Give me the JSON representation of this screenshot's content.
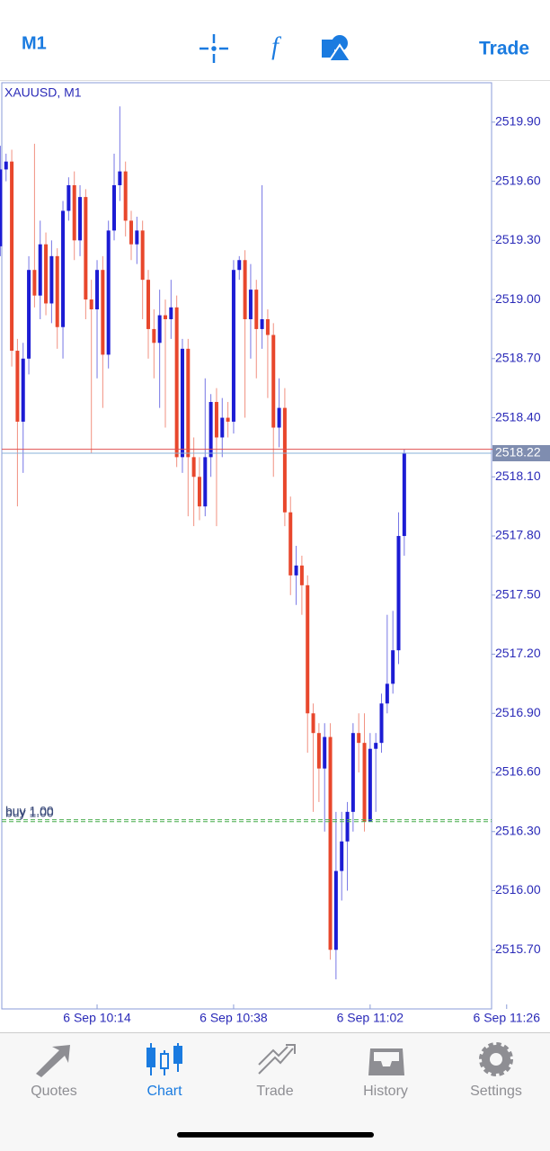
{
  "top_bar": {
    "timeframe": "M1",
    "trade": "Trade"
  },
  "chart_data": {
    "type": "candlestick",
    "title": "XAUUSD, M1",
    "up_color": "#1c1cd4",
    "down_color": "#e8472c",
    "candles": [
      [
        2519.27,
        2519.78,
        2519.22,
        2519.66
      ],
      [
        2519.66,
        2519.74,
        2519.6,
        2519.7
      ],
      [
        2519.7,
        2519.76,
        2518.66,
        2518.74
      ],
      [
        2518.74,
        2518.8,
        2517.95,
        2518.38
      ],
      [
        2518.38,
        2518.78,
        2518.12,
        2518.7
      ],
      [
        2518.7,
        2519.22,
        2518.62,
        2519.15
      ],
      [
        2519.15,
        2519.79,
        2518.96,
        2519.02
      ],
      [
        2519.02,
        2519.4,
        2518.9,
        2519.28
      ],
      [
        2519.28,
        2519.34,
        2518.92,
        2518.98
      ],
      [
        2518.98,
        2519.3,
        2518.88,
        2519.22
      ],
      [
        2519.22,
        2519.26,
        2518.75,
        2518.86
      ],
      [
        2518.86,
        2519.5,
        2518.7,
        2519.45
      ],
      [
        2519.45,
        2519.62,
        2519.4,
        2519.58
      ],
      [
        2519.58,
        2519.65,
        2519.2,
        2519.3
      ],
      [
        2519.3,
        2519.58,
        2519.22,
        2519.52
      ],
      [
        2519.52,
        2519.56,
        2518.9,
        2519.0
      ],
      [
        2519.0,
        2519.1,
        2518.22,
        2518.95
      ],
      [
        2518.95,
        2519.2,
        2518.6,
        2519.15
      ],
      [
        2519.15,
        2519.22,
        2518.45,
        2518.72
      ],
      [
        2518.72,
        2519.4,
        2518.65,
        2519.35
      ],
      [
        2519.35,
        2519.74,
        2519.3,
        2519.58
      ],
      [
        2519.58,
        2519.98,
        2519.5,
        2519.65
      ],
      [
        2519.65,
        2519.7,
        2519.32,
        2519.4
      ],
      [
        2519.4,
        2519.45,
        2519.2,
        2519.28
      ],
      [
        2519.28,
        2519.42,
        2519.18,
        2519.35
      ],
      [
        2519.35,
        2519.4,
        2518.9,
        2519.1
      ],
      [
        2519.1,
        2519.15,
        2518.7,
        2518.85
      ],
      [
        2518.85,
        2518.95,
        2518.6,
        2518.78
      ],
      [
        2518.78,
        2519.05,
        2518.45,
        2518.92
      ],
      [
        2518.92,
        2519.0,
        2518.35,
        2518.9
      ],
      [
        2518.9,
        2519.1,
        2518.8,
        2518.96
      ],
      [
        2518.96,
        2519.02,
        2518.15,
        2518.2
      ],
      [
        2518.2,
        2518.8,
        2518.12,
        2518.75
      ],
      [
        2518.75,
        2518.8,
        2517.9,
        2518.2
      ],
      [
        2518.2,
        2518.3,
        2517.85,
        2518.1
      ],
      [
        2518.1,
        2518.2,
        2517.88,
        2517.95
      ],
      [
        2517.95,
        2518.6,
        2517.9,
        2518.2
      ],
      [
        2518.2,
        2518.52,
        2518.1,
        2518.48
      ],
      [
        2518.48,
        2518.55,
        2517.85,
        2518.3
      ],
      [
        2518.3,
        2518.5,
        2518.2,
        2518.4
      ],
      [
        2518.4,
        2518.48,
        2518.3,
        2518.38
      ],
      [
        2518.38,
        2519.2,
        2518.32,
        2519.15
      ],
      [
        2519.15,
        2519.22,
        2519.1,
        2519.2
      ],
      [
        2519.2,
        2519.25,
        2518.4,
        2518.9
      ],
      [
        2518.9,
        2519.18,
        2518.7,
        2519.05
      ],
      [
        2519.05,
        2519.1,
        2518.6,
        2518.85
      ],
      [
        2518.85,
        2519.58,
        2518.75,
        2518.9
      ],
      [
        2518.9,
        2518.95,
        2518.5,
        2518.82
      ],
      [
        2518.82,
        2518.88,
        2518.1,
        2518.35
      ],
      [
        2518.35,
        2518.6,
        2518.25,
        2518.45
      ],
      [
        2518.45,
        2518.55,
        2517.85,
        2517.92
      ],
      [
        2517.92,
        2518.0,
        2517.5,
        2517.6
      ],
      [
        2517.6,
        2517.75,
        2517.45,
        2517.65
      ],
      [
        2517.65,
        2517.7,
        2517.4,
        2517.55
      ],
      [
        2517.55,
        2517.6,
        2516.7,
        2516.9
      ],
      [
        2516.9,
        2516.95,
        2516.4,
        2516.8
      ],
      [
        2516.8,
        2516.85,
        2516.45,
        2516.62
      ],
      [
        2516.62,
        2516.85,
        2516.3,
        2516.78
      ],
      [
        2516.78,
        2516.85,
        2515.65,
        2515.7
      ],
      [
        2515.7,
        2516.4,
        2515.55,
        2516.1
      ],
      [
        2516.1,
        2516.4,
        2515.95,
        2516.25
      ],
      [
        2516.25,
        2516.45,
        2516.0,
        2516.4
      ],
      [
        2516.4,
        2516.85,
        2516.3,
        2516.8
      ],
      [
        2516.8,
        2516.9,
        2516.6,
        2516.75
      ],
      [
        2516.75,
        2516.9,
        2516.3,
        2516.35
      ],
      [
        2516.35,
        2516.8,
        2516.35,
        2516.72
      ],
      [
        2516.72,
        2516.8,
        2516.4,
        2516.75
      ],
      [
        2516.75,
        2517.0,
        2516.7,
        2516.95
      ],
      [
        2516.95,
        2517.4,
        2516.9,
        2517.05
      ],
      [
        2517.05,
        2517.42,
        2517.0,
        2517.22
      ],
      [
        2517.22,
        2517.92,
        2517.15,
        2517.8
      ],
      [
        2517.8,
        2518.24,
        2517.7,
        2518.22
      ]
    ],
    "ylim": [
      2515.4,
      2520.1
    ],
    "yticks": [
      {
        "value": 2519.9,
        "label": "2519.90"
      },
      {
        "value": 2519.6,
        "label": "2519.60"
      },
      {
        "value": 2519.3,
        "label": "2519.30"
      },
      {
        "value": 2519.0,
        "label": "2519.00"
      },
      {
        "value": 2518.7,
        "label": "2518.70"
      },
      {
        "value": 2518.4,
        "label": "2518.40"
      },
      {
        "value": 2518.1,
        "label": "2518.10"
      },
      {
        "value": 2517.8,
        "label": "2517.80"
      },
      {
        "value": 2517.5,
        "label": "2517.50"
      },
      {
        "value": 2517.2,
        "label": "2517.20"
      },
      {
        "value": 2516.9,
        "label": "2516.90"
      },
      {
        "value": 2516.6,
        "label": "2516.60"
      },
      {
        "value": 2516.3,
        "label": "2516.30"
      },
      {
        "value": 2516.0,
        "label": "2516.00"
      },
      {
        "value": 2515.7,
        "label": "2515.70"
      }
    ],
    "xlim": [
      0.25,
      86.35
    ],
    "xticks": [
      {
        "value": 17,
        "label": "6 Sep 10:14"
      },
      {
        "value": 41,
        "label": "6 Sep 10:38"
      },
      {
        "value": 65,
        "label": "6 Sep 11:02"
      },
      {
        "value": 89,
        "label": "6 Sep 11:26"
      }
    ],
    "bid": 2518.22,
    "ask": 2518.24,
    "orders": [
      {
        "label": "buy 1.00",
        "price": 2516.36
      },
      {
        "label": "buy 1.00",
        "price": 2516.35
      }
    ]
  },
  "tab_bar": {
    "tabs": [
      "Quotes",
      "Chart",
      "Trade",
      "History",
      "Settings"
    ],
    "active": 1
  }
}
